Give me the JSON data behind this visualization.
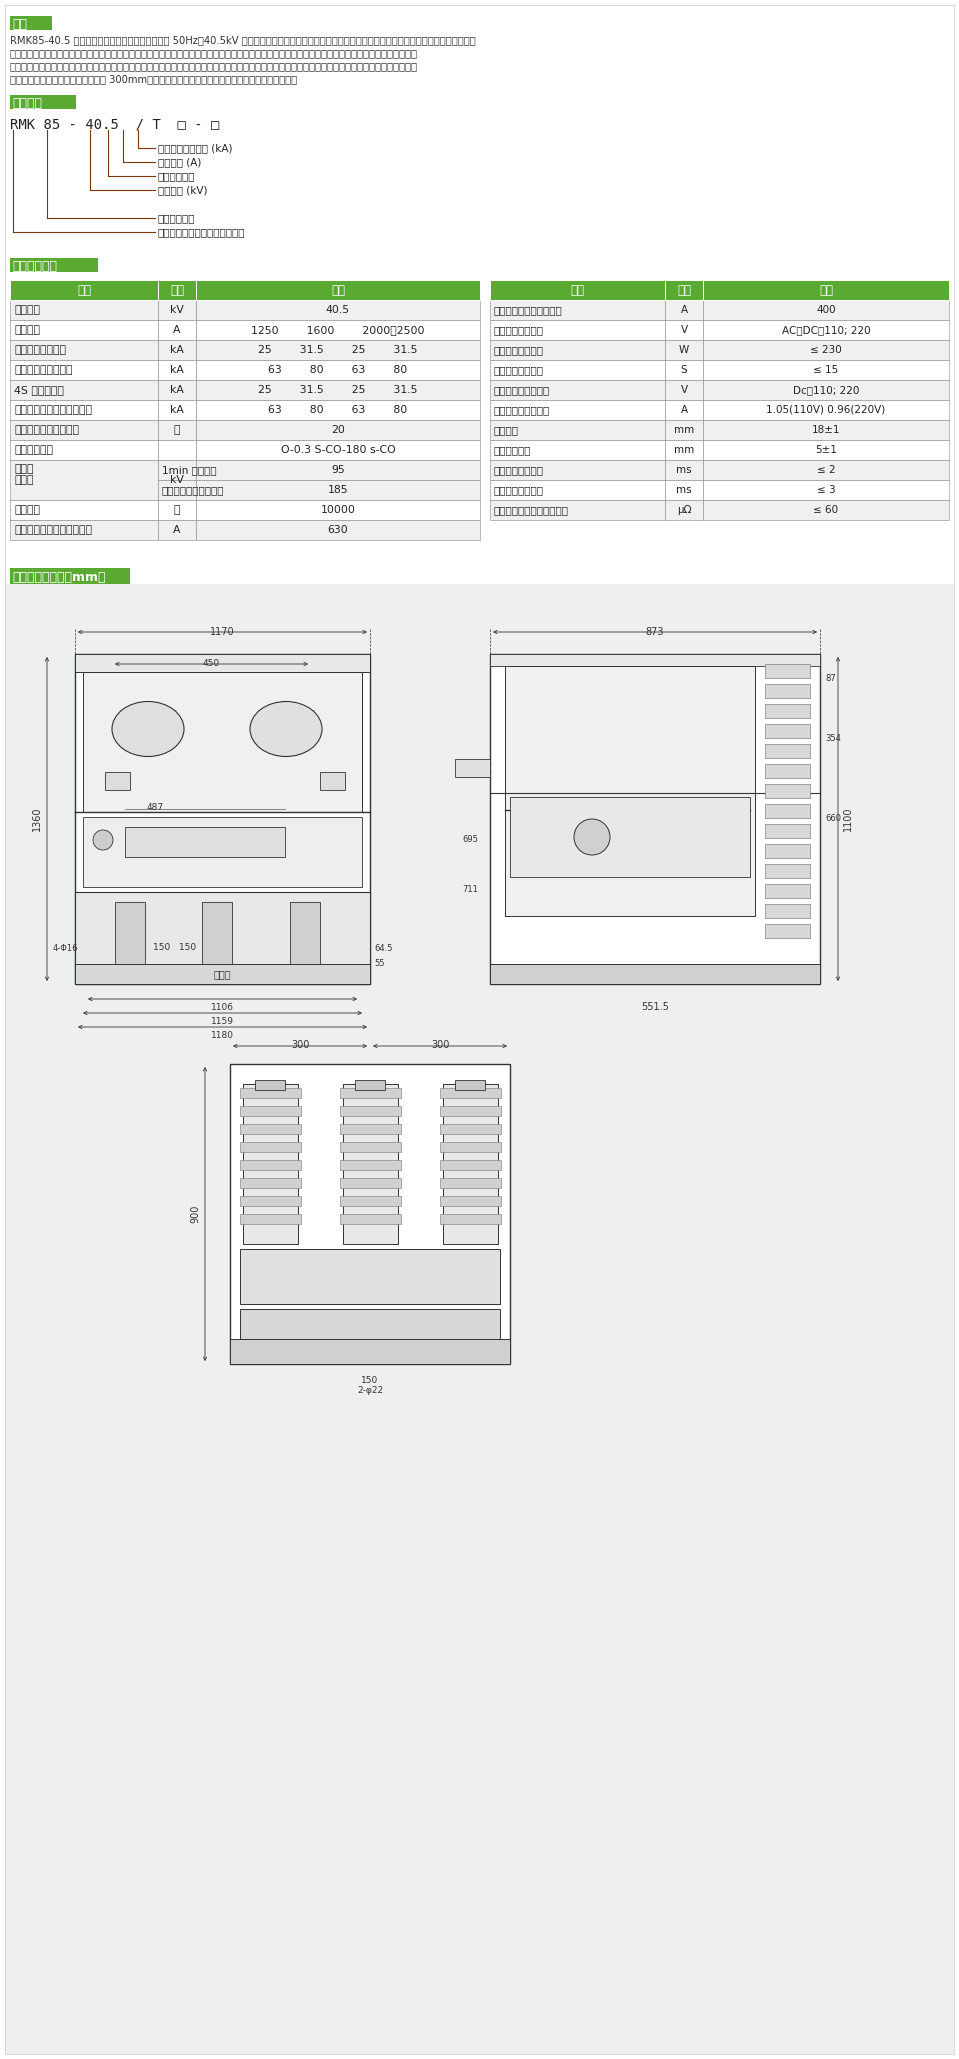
{
  "section1_title": "概述",
  "section1_text_lines": [
    "RMK85-40.5 户内高压真空断路器适用于三相交流 50Hz、40.5kV 系统中，可供工矿企业、发电厂及变电站作为分合负荷电流、过载电流故障电流之用，并",
    "适用于频繁操作场合。本断路器采用上下布置结构，有效地降低断路器的深度。并采用复合绝缘结构，三相灭弧室和相联带电体由三只独立的环氧树脂绝缘",
    "罩各相隔离，采用复合绝缘结构之后，断路器满足正常运行条件下的空气距离和爬距要求，并有效地减少了断路器的体积，主导电回路真空灭弧室和动静导",
    "电联接安装在绝缘腔内，使相间仅为 300mm，主回路电气连接全部采用固定连接具有很高的可靠性。"
  ],
  "section2_title": "型号含义",
  "model_text": "RMK 85 - 40.5  / T  □ - □",
  "model_labels": [
    "额定短路开断电流 (kA)",
    "额定电流 (A)",
    "弹簧操作机构",
    "额定电压 (kV)",
    "产品设计序号",
    "人民智能科技（江苏）有限公司"
  ],
  "section3_title": "主要技术参数",
  "section4_title": "外形及安装尺寸（mm）",
  "table_green": "#5aaa32",
  "bg_color": "#ffffff",
  "drawing_bg": "#eef0f0",
  "line_color": "#333333",
  "dim_color": "#444444",
  "left_table_rows": [
    [
      "额定电压",
      "kV",
      "40.5"
    ],
    [
      "额定电流",
      "A",
      "1250\t1600\t2000、2500"
    ],
    [
      "额定短路开断电流",
      "kA",
      "25\t31.5\t25\t31.5"
    ],
    [
      "动稳定电流（峰值）",
      "kA",
      "63\t80\t63\t80"
    ],
    [
      "4S 热稳定电流",
      "kA",
      "25\t31.5\t25\t31.5"
    ],
    [
      "额定短路关合电流（峰值）",
      "kA",
      "63\t80\t63\t80"
    ],
    [
      "额定短路电流开断次数",
      "次",
      "20"
    ],
    [
      "额定操作顺序",
      "",
      "O-0.3 S-CO-180 s-CO"
    ],
    [
      "额定绝\n缘水平",
      "1min 工频耐压",
      "kV_95"
    ],
    [
      "SPLIT",
      "雷电冲击耐压（峰值）",
      "kV_185"
    ],
    [
      "机械寿命",
      "次",
      "10000"
    ],
    [
      "额定单个电容器组开和电流",
      "A",
      "630"
    ]
  ],
  "right_table_rows": [
    [
      "额定背对背电容器组电流",
      "A",
      "400"
    ],
    [
      "储能电机额定电压",
      "V",
      "AC、DC；110; 220"
    ],
    [
      "储能电机额定功率",
      "W",
      "≤ 230"
    ],
    [
      "储能电机储能时间",
      "S",
      "≤ 15"
    ],
    [
      "合分闸线圈额定电压",
      "V",
      "Dc：110; 220"
    ],
    [
      "合分闸线圈额定电流",
      "A",
      "1.05(110V) 0.96(220V)"
    ],
    [
      "触头开距",
      "mm",
      "18±1"
    ],
    [
      "触头接触行程",
      "mm",
      "5±1"
    ],
    [
      "三相合分不同期性",
      "ms",
      "≤ 2"
    ],
    [
      "触头合闸弹跳时间",
      "ms",
      "≤ 3"
    ],
    [
      "主回路电阻（不包括触壁）",
      "μΩ",
      "≤ 60"
    ]
  ]
}
